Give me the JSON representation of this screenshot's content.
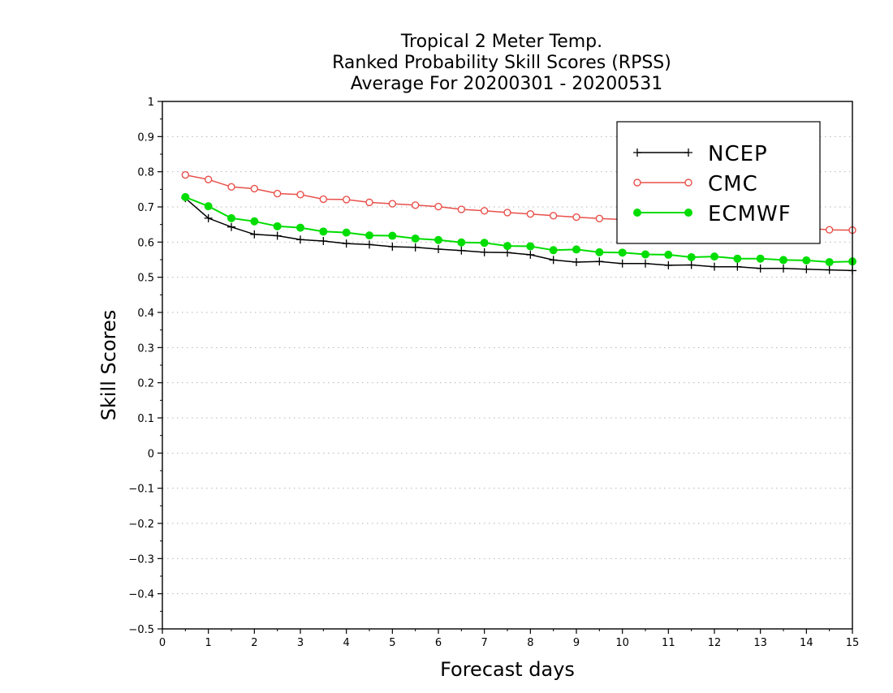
{
  "chart_data": {
    "type": "line",
    "title": [
      "Tropical 2 Meter Temp.",
      "Ranked Probability Skill Scores (RPSS)",
      "Average For 20200301 - 20200531"
    ],
    "xlabel": "Forecast days",
    "ylabel": "Skill Scores",
    "xlim": [
      0,
      15
    ],
    "ylim": [
      -0.5,
      1
    ],
    "xticks": [
      0,
      1,
      2,
      3,
      4,
      5,
      6,
      7,
      8,
      9,
      10,
      11,
      12,
      13,
      14,
      15
    ],
    "xtick_labels": [
      "0",
      "1",
      "2",
      "3",
      "4",
      "5",
      "6",
      "7",
      "8",
      "9",
      "10",
      "11",
      "12",
      "13",
      "14",
      "15"
    ],
    "yticks": [
      -0.5,
      -0.4,
      -0.3,
      -0.2,
      -0.1,
      0,
      0.1,
      0.2,
      0.3,
      0.4,
      0.5,
      0.6,
      0.7,
      0.8,
      0.9,
      1
    ],
    "ytick_labels": [
      "−0.5",
      "−0.4",
      "−0.3",
      "−0.2",
      "−0.1",
      "0",
      "0.1",
      "0.2",
      "0.3",
      "0.4",
      "0.5",
      "0.6",
      "0.7",
      "0.8",
      "0.9",
      "1"
    ],
    "grid": "horizontal-dotted",
    "legend_position": "top-right",
    "x": [
      0.5,
      1,
      1.5,
      2,
      2.5,
      3,
      3.5,
      4,
      4.5,
      5,
      5.5,
      6,
      6.5,
      7,
      7.5,
      8,
      8.5,
      9,
      9.5,
      10,
      10.5,
      11,
      11.5,
      12,
      12.5,
      13,
      13.5,
      14,
      14.5,
      15
    ],
    "series": [
      {
        "name": "NCEP",
        "color": "#000000",
        "marker": "plus",
        "values": [
          0.725,
          0.668,
          0.643,
          0.622,
          0.618,
          0.607,
          0.603,
          0.596,
          0.593,
          0.587,
          0.585,
          0.58,
          0.576,
          0.571,
          0.57,
          0.564,
          0.549,
          0.543,
          0.545,
          0.539,
          0.539,
          0.534,
          0.535,
          0.53,
          0.53,
          0.525,
          0.525,
          0.523,
          0.521,
          0.519
        ]
      },
      {
        "name": "CMC",
        "color": "#e8504a",
        "marker": "open-circle",
        "values": [
          0.791,
          0.778,
          0.757,
          0.752,
          0.738,
          0.735,
          0.722,
          0.721,
          0.713,
          0.709,
          0.705,
          0.701,
          0.693,
          0.689,
          0.684,
          0.68,
          0.675,
          0.671,
          0.667,
          0.664,
          0.66,
          0.657,
          0.654,
          0.651,
          0.648,
          0.645,
          0.642,
          0.639,
          0.635,
          0.634
        ]
      },
      {
        "name": "ECMWF",
        "color": "#00dd00",
        "marker": "filled-circle",
        "values": [
          0.728,
          0.702,
          0.668,
          0.659,
          0.645,
          0.641,
          0.63,
          0.627,
          0.619,
          0.618,
          0.61,
          0.606,
          0.599,
          0.598,
          0.589,
          0.588,
          0.577,
          0.579,
          0.571,
          0.57,
          0.565,
          0.564,
          0.557,
          0.559,
          0.553,
          0.553,
          0.549,
          0.548,
          0.543,
          0.545
        ]
      }
    ]
  }
}
